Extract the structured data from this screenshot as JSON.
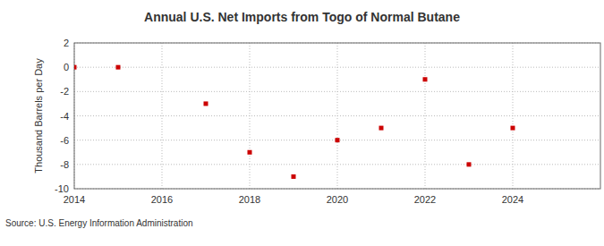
{
  "chart_data": {
    "type": "scatter",
    "title": "Annual U.S. Net Imports from Togo of Normal Butane",
    "y_label": "Thousand Barrels per Day",
    "source": "Source: U.S. Energy Information Administration",
    "x": [
      2014,
      2015,
      2017,
      2018,
      2019,
      2020,
      2021,
      2022,
      2023,
      2024
    ],
    "values": [
      0,
      0,
      -3,
      -7,
      -9,
      -6,
      -5,
      -1,
      -8,
      -5
    ],
    "color": "#cc0000",
    "marker": "square",
    "xlim": [
      2014,
      2026
    ],
    "xticks": [
      2014,
      2016,
      2018,
      2020,
      2022,
      2024
    ],
    "ylim": [
      -10,
      2
    ],
    "yticks": [
      -10,
      -8,
      -6,
      -4,
      -2,
      0,
      2
    ],
    "grid": true
  }
}
